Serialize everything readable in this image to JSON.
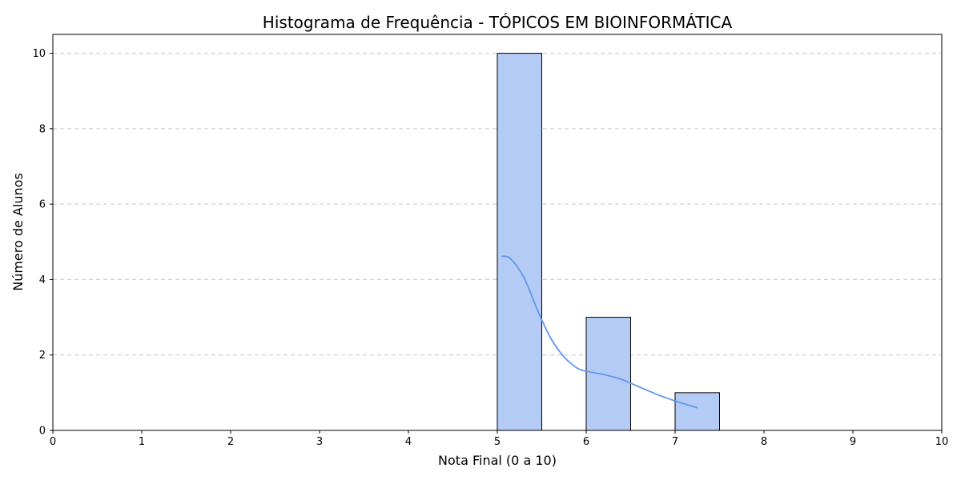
{
  "chart_data": {
    "type": "bar",
    "title": "Histograma de Frequência - TÓPICOS EM BIOINFORMÁTICA",
    "xlabel": "Nota Final (0 a 10)",
    "ylabel": "Número de Alunos",
    "xlim": [
      0,
      10
    ],
    "ylim": [
      0,
      10.5
    ],
    "x_ticks": [
      0,
      1,
      2,
      3,
      4,
      5,
      6,
      7,
      8,
      9,
      10
    ],
    "y_ticks": [
      0,
      2,
      4,
      6,
      8,
      10
    ],
    "grid": "y",
    "bins": [
      {
        "start": 5.0,
        "end": 5.5,
        "count": 10
      },
      {
        "start": 6.0,
        "end": 6.5,
        "count": 3
      },
      {
        "start": 7.0,
        "end": 7.5,
        "count": 1
      }
    ],
    "kde": {
      "x": [
        5.05,
        5.15,
        5.3,
        5.45,
        5.6,
        5.75,
        5.9,
        6.0,
        6.2,
        6.4,
        6.6,
        6.8,
        7.0,
        7.15,
        7.25
      ],
      "y": [
        4.62,
        4.55,
        4.05,
        3.2,
        2.45,
        1.95,
        1.65,
        1.57,
        1.48,
        1.35,
        1.15,
        0.95,
        0.78,
        0.67,
        0.6
      ]
    },
    "colors": {
      "bar_fill": "#b3cbf5",
      "bar_edge": "#000000",
      "kde_line": "#6495ed"
    }
  }
}
